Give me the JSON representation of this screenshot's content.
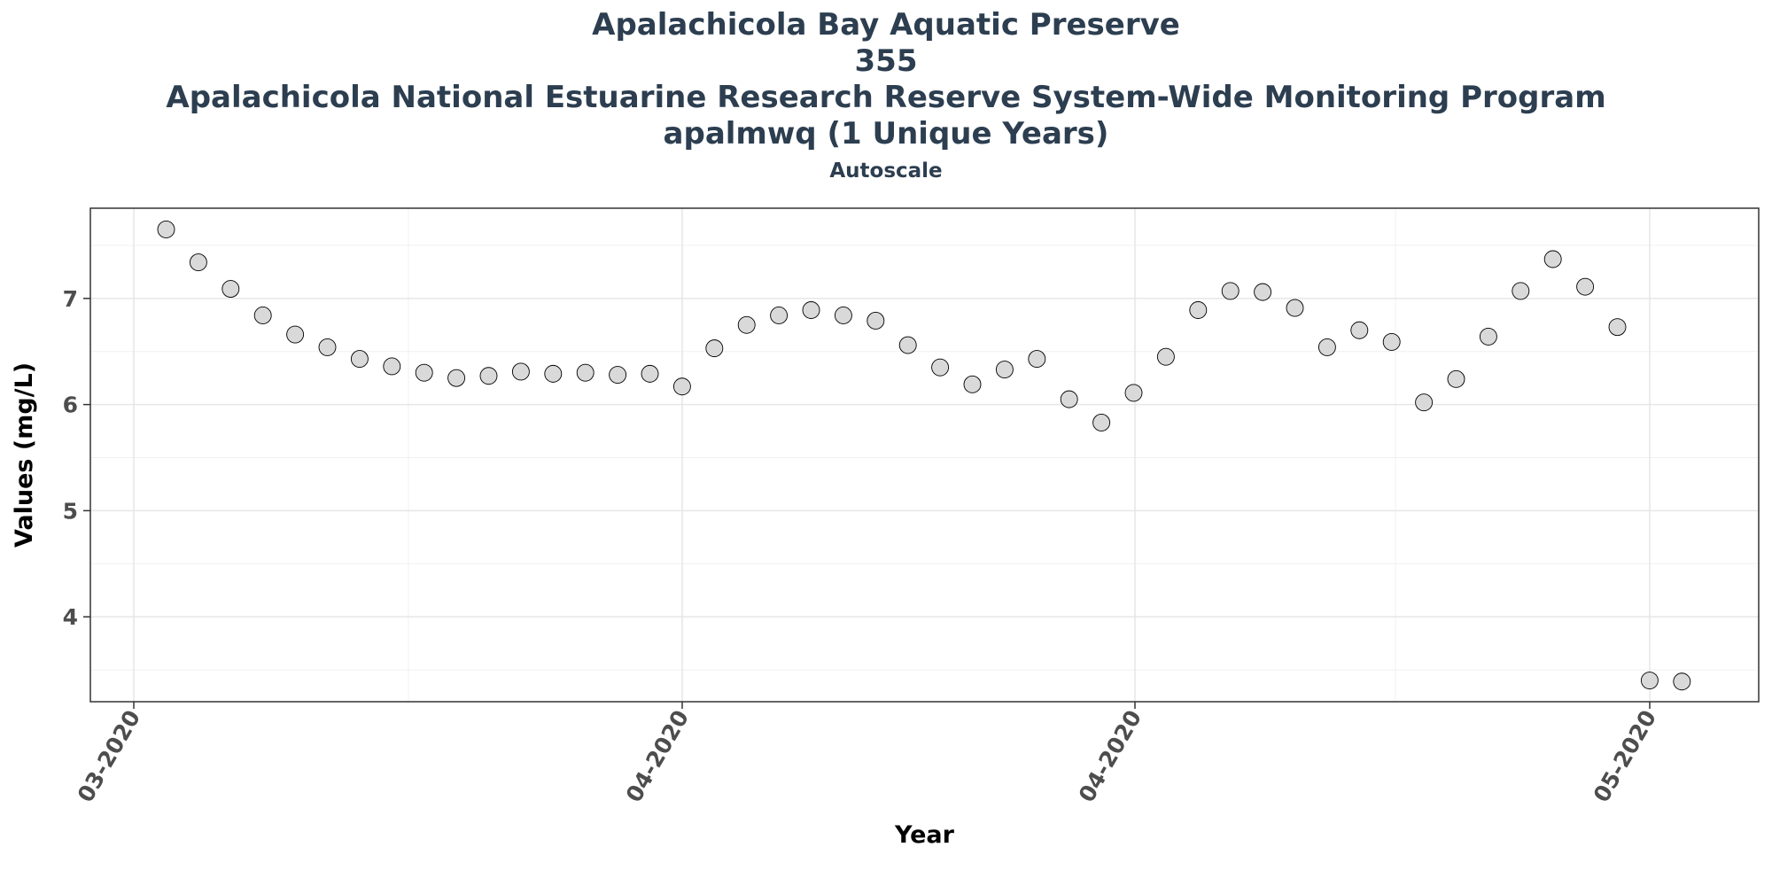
{
  "chart_data": {
    "type": "scatter",
    "title_lines": [
      "Apalachicola Bay Aquatic Preserve",
      "355",
      "Apalachicola National Estuarine Research Reserve System-Wide Monitoring Program",
      "apalmwq (1 Unique Years)"
    ],
    "subtitle": "Autoscale",
    "xlabel": "Year",
    "ylabel": "Values (mg/L)",
    "x_tick_labels": [
      "03-2020",
      "04-2020",
      "04-2020",
      "05-2020"
    ],
    "y_ticks": [
      4,
      5,
      6,
      7
    ],
    "ylim": [
      3.2,
      7.85
    ],
    "grid": true,
    "legend": "none",
    "point_fill": "#d9d9d9",
    "point_stroke": "#000000",
    "title_color": "#2c3e50",
    "points": [
      {
        "x": 1,
        "y": 7.65
      },
      {
        "x": 2,
        "y": 7.34
      },
      {
        "x": 3,
        "y": 7.09
      },
      {
        "x": 4,
        "y": 6.84
      },
      {
        "x": 5,
        "y": 6.66
      },
      {
        "x": 6,
        "y": 6.54
      },
      {
        "x": 7,
        "y": 6.43
      },
      {
        "x": 8,
        "y": 6.36
      },
      {
        "x": 9,
        "y": 6.3
      },
      {
        "x": 10,
        "y": 6.25
      },
      {
        "x": 11,
        "y": 6.27
      },
      {
        "x": 12,
        "y": 6.31
      },
      {
        "x": 13,
        "y": 6.29
      },
      {
        "x": 14,
        "y": 6.3
      },
      {
        "x": 15,
        "y": 6.28
      },
      {
        "x": 16,
        "y": 6.29
      },
      {
        "x": 17,
        "y": 6.17
      },
      {
        "x": 18,
        "y": 6.53
      },
      {
        "x": 19,
        "y": 6.75
      },
      {
        "x": 20,
        "y": 6.84
      },
      {
        "x": 21,
        "y": 6.89
      },
      {
        "x": 22,
        "y": 6.84
      },
      {
        "x": 23,
        "y": 6.79
      },
      {
        "x": 24,
        "y": 6.56
      },
      {
        "x": 25,
        "y": 6.35
      },
      {
        "x": 26,
        "y": 6.19
      },
      {
        "x": 27,
        "y": 6.33
      },
      {
        "x": 28,
        "y": 6.43
      },
      {
        "x": 29,
        "y": 6.05
      },
      {
        "x": 30,
        "y": 5.83
      },
      {
        "x": 31,
        "y": 6.11
      },
      {
        "x": 32,
        "y": 6.45
      },
      {
        "x": 33,
        "y": 6.89
      },
      {
        "x": 34,
        "y": 7.07
      },
      {
        "x": 35,
        "y": 7.06
      },
      {
        "x": 36,
        "y": 6.91
      },
      {
        "x": 37,
        "y": 6.54
      },
      {
        "x": 38,
        "y": 6.7
      },
      {
        "x": 39,
        "y": 6.59
      },
      {
        "x": 40,
        "y": 6.02
      },
      {
        "x": 41,
        "y": 6.24
      },
      {
        "x": 42,
        "y": 6.64
      },
      {
        "x": 43,
        "y": 7.07
      },
      {
        "x": 44,
        "y": 7.37
      },
      {
        "x": 45,
        "y": 7.11
      },
      {
        "x": 46,
        "y": 6.73
      },
      {
        "x": 47,
        "y": 3.4
      },
      {
        "x": 48,
        "y": 3.39
      }
    ]
  }
}
